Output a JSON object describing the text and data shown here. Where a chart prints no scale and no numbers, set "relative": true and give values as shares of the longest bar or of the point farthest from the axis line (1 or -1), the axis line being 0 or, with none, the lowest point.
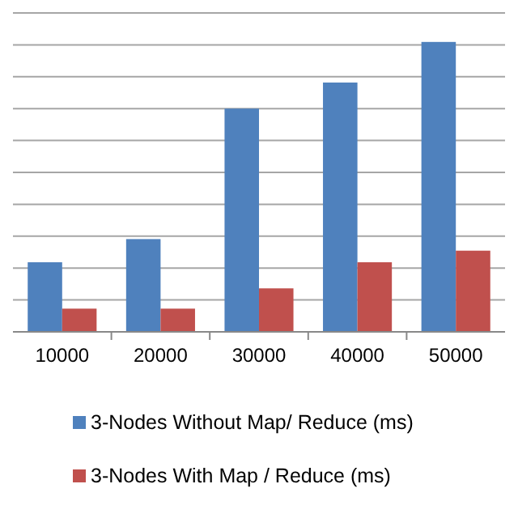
{
  "chart_data": {
    "type": "bar",
    "relative": true,
    "categories": [
      "10000",
      "20000",
      "30000",
      "40000",
      "50000"
    ],
    "series": [
      {
        "name": "3-Nodes Without Map/ Reduce (ms)",
        "color": "#4f81bd",
        "values": [
          0.24,
          0.32,
          0.77,
          0.86,
          1
        ]
      },
      {
        "name": "3-Nodes With Map / Reduce (ms)",
        "color": "#c0504d",
        "values": [
          0.08,
          0.08,
          0.15,
          0.24,
          0.28
        ]
      }
    ],
    "grid": true,
    "legend": "bottom"
  }
}
